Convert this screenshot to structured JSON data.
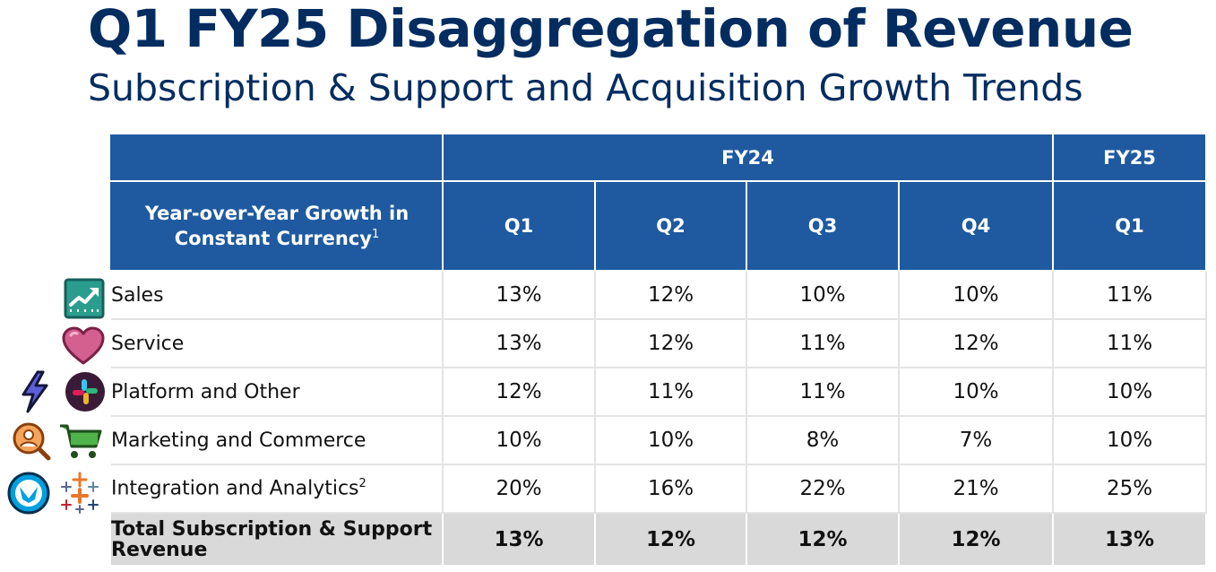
{
  "title": "Q1 FY25 Disaggregation of Revenue",
  "subtitle": "Subscription & Support and Acquisition Growth Trends",
  "table": {
    "metric_label": "Year-over-Year Growth in Constant Currency",
    "metric_footnote": "1",
    "groups": [
      {
        "label": "FY24"
      },
      {
        "label": "FY25"
      }
    ],
    "quarters": [
      "Q1",
      "Q2",
      "Q3",
      "Q4",
      "Q1"
    ],
    "rows": [
      {
        "label": "Sales",
        "footnote": "",
        "values": [
          "13%",
          "12%",
          "10%",
          "10%",
          "11%"
        ]
      },
      {
        "label": "Service",
        "footnote": "",
        "values": [
          "13%",
          "12%",
          "11%",
          "12%",
          "11%"
        ]
      },
      {
        "label": "Platform and Other",
        "footnote": "",
        "values": [
          "12%",
          "11%",
          "11%",
          "10%",
          "10%"
        ]
      },
      {
        "label": "Marketing and Commerce",
        "footnote": "",
        "values": [
          "10%",
          "10%",
          "8%",
          "7%",
          "10%"
        ]
      },
      {
        "label": "Integration and Analytics",
        "footnote": "2",
        "values": [
          "20%",
          "16%",
          "22%",
          "21%",
          "25%"
        ]
      }
    ],
    "total": {
      "label": "Total Subscription & Support Revenue",
      "values": [
        "13%",
        "12%",
        "12%",
        "12%",
        "13%"
      ]
    }
  },
  "icons": [
    "sales-chart-icon",
    "heart-icon",
    "lightning-icon",
    "slack-icon",
    "search-person-icon",
    "shopping-cart-icon",
    "mulesoft-icon",
    "tableau-icon"
  ],
  "colors": {
    "title": "#032d60",
    "header_fill": "#1f5aa0",
    "total_fill": "#d9d9d9"
  }
}
